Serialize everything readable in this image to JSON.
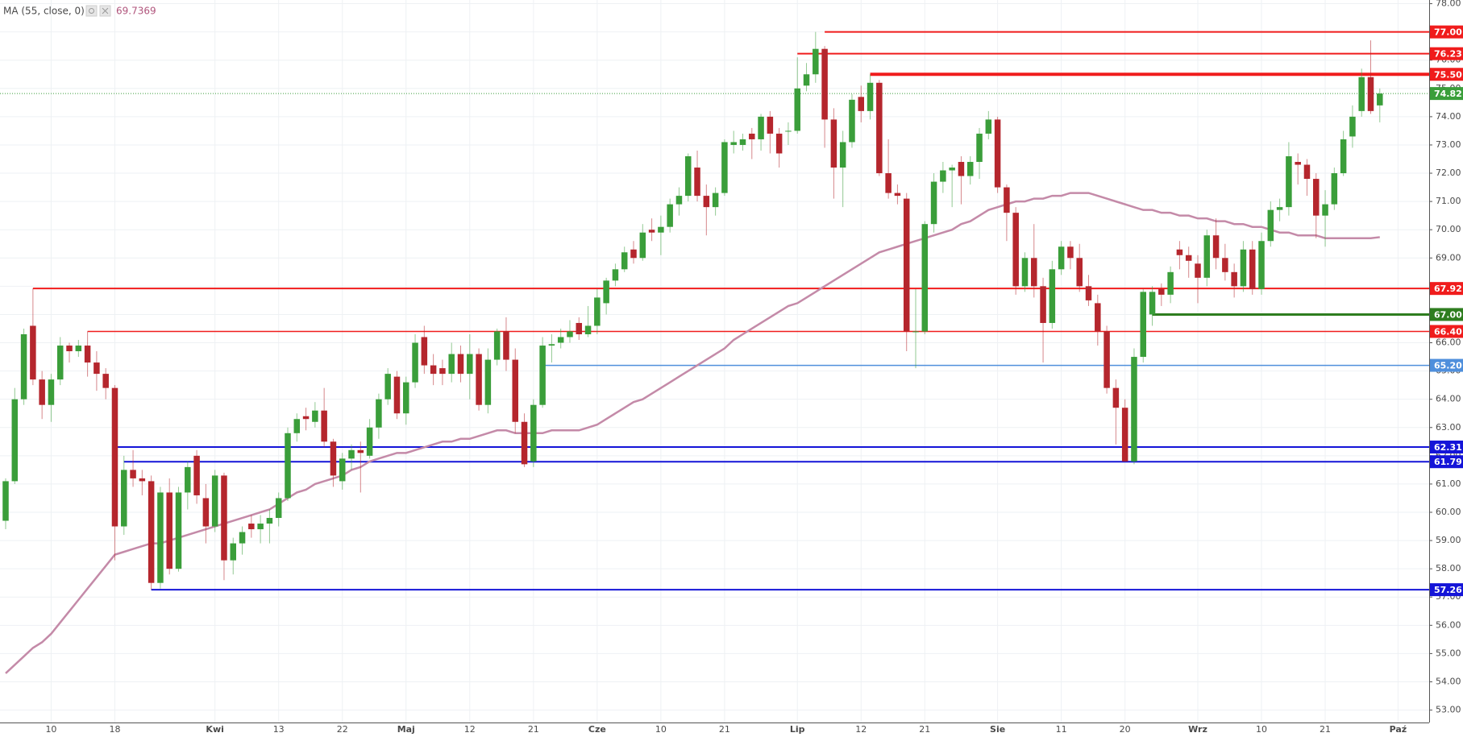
{
  "chart_data": {
    "type": "candlestick",
    "categories": [
      null,
      null,
      null,
      null,
      null,
      "10",
      null,
      null,
      null,
      null,
      null,
      null,
      "18",
      null,
      null,
      null,
      null,
      null,
      null,
      null,
      null,
      null,
      null,
      "Kwi",
      null,
      null,
      null,
      null,
      null,
      null,
      "13",
      null,
      null,
      null,
      null,
      null,
      null,
      "22",
      null,
      null,
      null,
      null,
      null,
      null,
      "Maj",
      null,
      null,
      null,
      null,
      null,
      null,
      "12",
      null,
      null,
      null,
      null,
      null,
      null,
      "21",
      null,
      null,
      null,
      null,
      null,
      null,
      "Cze",
      null,
      null,
      null,
      null,
      null,
      null,
      "10",
      null,
      null,
      null,
      null,
      null,
      null,
      "21",
      null,
      null,
      null,
      null,
      null,
      null,
      null,
      "Lip",
      null,
      null,
      null,
      null,
      null,
      null,
      "12",
      null,
      null,
      null,
      null,
      null,
      null,
      "21",
      null,
      null,
      null,
      null,
      null,
      null,
      null,
      "Sie",
      null,
      null,
      null,
      null,
      null,
      null,
      "11",
      null,
      null,
      null,
      null,
      null,
      null,
      "20",
      null,
      null,
      null,
      null,
      null,
      null,
      null,
      "Wrz",
      null,
      null,
      null,
      null,
      null,
      null,
      "10",
      null,
      null,
      null,
      null,
      null,
      null,
      "21",
      null,
      null,
      null,
      null,
      null,
      null,
      null,
      "Paź"
    ],
    "ohlc": [
      [
        59.7,
        61.2,
        59.4,
        61.1
      ],
      [
        61.1,
        64.4,
        61.0,
        64.0
      ],
      [
        64.0,
        66.5,
        63.8,
        66.3
      ],
      [
        66.6,
        67.92,
        64.5,
        64.7
      ],
      [
        64.7,
        65.0,
        63.3,
        63.8
      ],
      [
        63.8,
        64.9,
        63.2,
        64.7
      ],
      [
        64.7,
        66.2,
        64.5,
        65.9
      ],
      [
        65.9,
        66.0,
        65.3,
        65.7
      ],
      [
        65.7,
        66.1,
        65.5,
        65.9
      ],
      [
        65.9,
        66.4,
        64.8,
        65.3
      ],
      [
        65.3,
        65.7,
        64.3,
        64.9
      ],
      [
        64.9,
        65.1,
        64.0,
        64.4
      ],
      [
        64.4,
        64.5,
        58.3,
        59.5
      ],
      [
        59.5,
        62.0,
        59.2,
        61.5
      ],
      [
        61.5,
        62.2,
        60.9,
        61.2
      ],
      [
        61.2,
        61.5,
        60.6,
        61.1
      ],
      [
        61.1,
        61.3,
        57.26,
        57.5
      ],
      [
        57.5,
        60.9,
        57.3,
        60.7
      ],
      [
        60.7,
        61.2,
        57.8,
        58.0
      ],
      [
        58.0,
        60.9,
        57.9,
        60.7
      ],
      [
        60.7,
        61.8,
        60.1,
        61.6
      ],
      [
        62.0,
        62.2,
        60.3,
        60.6
      ],
      [
        60.5,
        61.0,
        58.9,
        59.5
      ],
      [
        59.5,
        61.5,
        59.3,
        61.3
      ],
      [
        61.3,
        61.4,
        57.6,
        58.3
      ],
      [
        58.3,
        59.1,
        57.8,
        58.9
      ],
      [
        58.9,
        59.5,
        58.5,
        59.3
      ],
      [
        59.6,
        59.9,
        59.1,
        59.4
      ],
      [
        59.4,
        59.9,
        58.9,
        59.6
      ],
      [
        59.6,
        60.1,
        58.9,
        59.8
      ],
      [
        59.8,
        60.7,
        59.5,
        60.5
      ],
      [
        60.5,
        63.0,
        60.4,
        62.8
      ],
      [
        62.8,
        63.5,
        62.5,
        63.3
      ],
      [
        63.4,
        63.7,
        62.9,
        63.3
      ],
      [
        63.2,
        63.9,
        63.0,
        63.6
      ],
      [
        63.6,
        64.4,
        62.3,
        62.5
      ],
      [
        62.5,
        62.6,
        60.9,
        61.3
      ],
      [
        61.1,
        62.1,
        60.8,
        61.9
      ],
      [
        61.9,
        62.4,
        61.5,
        62.2
      ],
      [
        62.2,
        62.5,
        60.7,
        62.1
      ],
      [
        62.0,
        63.3,
        61.9,
        63.0
      ],
      [
        63.0,
        64.2,
        62.6,
        64.0
      ],
      [
        64.0,
        65.1,
        63.8,
        64.9
      ],
      [
        64.8,
        65.0,
        63.3,
        63.5
      ],
      [
        63.5,
        64.8,
        63.1,
        64.6
      ],
      [
        64.6,
        66.3,
        64.4,
        66.0
      ],
      [
        66.2,
        66.6,
        64.9,
        65.2
      ],
      [
        65.2,
        65.6,
        64.5,
        64.9
      ],
      [
        65.1,
        65.4,
        64.5,
        64.9
      ],
      [
        64.9,
        66.0,
        64.6,
        65.6
      ],
      [
        65.6,
        65.9,
        64.6,
        64.9
      ],
      [
        64.9,
        66.3,
        64.0,
        65.6
      ],
      [
        65.6,
        65.8,
        63.6,
        63.8
      ],
      [
        63.8,
        65.8,
        63.5,
        65.4
      ],
      [
        65.4,
        66.5,
        65.2,
        66.4
      ],
      [
        66.4,
        66.9,
        65.0,
        65.4
      ],
      [
        65.4,
        65.8,
        62.8,
        63.2
      ],
      [
        63.2,
        63.5,
        61.6,
        61.7
      ],
      [
        61.8,
        64.0,
        61.6,
        63.8
      ],
      [
        63.8,
        66.2,
        63.7,
        65.9
      ],
      [
        65.9,
        66.3,
        65.3,
        65.95
      ],
      [
        66.0,
        66.5,
        65.8,
        66.2
      ],
      [
        66.2,
        66.8,
        66.0,
        66.4
      ],
      [
        66.7,
        66.9,
        66.1,
        66.3
      ],
      [
        66.3,
        67.3,
        66.2,
        66.6
      ],
      [
        66.6,
        67.9,
        66.3,
        67.6
      ],
      [
        67.4,
        68.3,
        67.0,
        68.2
      ],
      [
        68.2,
        68.8,
        68.0,
        68.6
      ],
      [
        68.6,
        69.4,
        68.5,
        69.2
      ],
      [
        69.3,
        69.6,
        68.8,
        69.0
      ],
      [
        69.0,
        70.2,
        68.9,
        69.9
      ],
      [
        70.0,
        70.4,
        69.6,
        69.9
      ],
      [
        69.9,
        70.5,
        69.1,
        70.1
      ],
      [
        70.1,
        71.1,
        69.9,
        70.9
      ],
      [
        70.9,
        71.5,
        70.5,
        71.2
      ],
      [
        71.2,
        72.7,
        71.0,
        72.6
      ],
      [
        72.2,
        72.8,
        71.0,
        71.2
      ],
      [
        71.2,
        71.6,
        69.8,
        70.8
      ],
      [
        70.8,
        71.5,
        70.5,
        71.3
      ],
      [
        71.3,
        73.2,
        71.2,
        73.1
      ],
      [
        73.0,
        73.5,
        72.7,
        73.1
      ],
      [
        73.0,
        73.4,
        72.8,
        73.2
      ],
      [
        73.4,
        73.6,
        72.5,
        73.2
      ],
      [
        73.2,
        74.1,
        72.8,
        74.0
      ],
      [
        74.0,
        74.2,
        72.7,
        73.4
      ],
      [
        73.4,
        73.6,
        72.2,
        72.7
      ],
      [
        73.5,
        73.8,
        73.0,
        73.5
      ],
      [
        73.5,
        76.1,
        73.4,
        75.0
      ],
      [
        75.1,
        75.9,
        74.9,
        75.5
      ],
      [
        75.5,
        77.0,
        75.2,
        76.4
      ],
      [
        76.4,
        76.5,
        72.9,
        73.9
      ],
      [
        73.9,
        74.3,
        71.1,
        72.2
      ],
      [
        72.2,
        73.5,
        70.8,
        73.1
      ],
      [
        73.1,
        74.8,
        72.9,
        74.6
      ],
      [
        74.7,
        75.1,
        73.8,
        74.2
      ],
      [
        74.2,
        75.5,
        73.9,
        75.2
      ],
      [
        75.2,
        75.3,
        71.9,
        72.0
      ],
      [
        72.0,
        73.2,
        71.1,
        71.3
      ],
      [
        71.3,
        71.6,
        70.9,
        71.2
      ],
      [
        71.1,
        71.3,
        65.7,
        66.4
      ],
      [
        66.4,
        67.9,
        65.1,
        66.4
      ],
      [
        66.4,
        70.3,
        66.3,
        70.2
      ],
      [
        70.2,
        72.0,
        69.9,
        71.7
      ],
      [
        71.7,
        72.4,
        71.3,
        72.1
      ],
      [
        72.1,
        72.3,
        70.8,
        72.2
      ],
      [
        72.4,
        72.6,
        70.9,
        71.9
      ],
      [
        71.9,
        72.6,
        71.6,
        72.4
      ],
      [
        72.4,
        73.6,
        71.8,
        73.4
      ],
      [
        73.4,
        74.2,
        73.2,
        73.9
      ],
      [
        73.9,
        74.0,
        71.3,
        71.5
      ],
      [
        71.5,
        71.6,
        69.6,
        70.6
      ],
      [
        70.6,
        70.8,
        67.7,
        68.0
      ],
      [
        68.0,
        69.2,
        67.8,
        69.0
      ],
      [
        69.0,
        70.2,
        67.6,
        68.0
      ],
      [
        68.0,
        68.3,
        65.3,
        66.7
      ],
      [
        66.7,
        68.9,
        66.5,
        68.6
      ],
      [
        68.6,
        69.6,
        68.4,
        69.4
      ],
      [
        69.4,
        69.6,
        68.6,
        69.0
      ],
      [
        69.0,
        69.5,
        67.8,
        68.0
      ],
      [
        68.0,
        68.4,
        67.3,
        67.5
      ],
      [
        67.4,
        67.7,
        65.9,
        66.4
      ],
      [
        66.4,
        66.6,
        64.2,
        64.4
      ],
      [
        64.4,
        64.7,
        62.4,
        63.7
      ],
      [
        63.7,
        64.0,
        61.79,
        61.8
      ],
      [
        61.8,
        65.8,
        61.7,
        65.5
      ],
      [
        65.5,
        67.9,
        65.3,
        67.8
      ],
      [
        67.0,
        68.0,
        66.6,
        67.8
      ],
      [
        67.9,
        68.1,
        67.3,
        67.7
      ],
      [
        67.7,
        68.7,
        67.4,
        68.5
      ],
      [
        69.3,
        69.6,
        68.6,
        69.1
      ],
      [
        69.1,
        69.4,
        68.3,
        68.9
      ],
      [
        68.8,
        69.1,
        67.4,
        68.3
      ],
      [
        68.3,
        70.0,
        68.0,
        69.8
      ],
      [
        69.8,
        70.4,
        68.6,
        69.0
      ],
      [
        69.0,
        69.5,
        68.2,
        68.5
      ],
      [
        68.5,
        68.8,
        67.6,
        68.0
      ],
      [
        68.0,
        69.6,
        67.8,
        69.3
      ],
      [
        69.3,
        69.6,
        67.7,
        67.9
      ],
      [
        67.9,
        69.9,
        67.7,
        69.6
      ],
      [
        69.6,
        71.0,
        69.4,
        70.7
      ],
      [
        70.7,
        71.1,
        70.3,
        70.8
      ],
      [
        70.8,
        73.1,
        70.5,
        72.6
      ],
      [
        72.4,
        72.7,
        71.6,
        72.3
      ],
      [
        72.3,
        72.5,
        71.2,
        71.8
      ],
      [
        71.8,
        72.0,
        69.7,
        70.5
      ],
      [
        70.5,
        71.4,
        69.4,
        70.9
      ],
      [
        70.9,
        72.2,
        70.7,
        72.0
      ],
      [
        72.0,
        73.5,
        71.9,
        73.2
      ],
      [
        73.3,
        74.4,
        72.9,
        74.0
      ],
      [
        74.2,
        75.7,
        74.0,
        75.4
      ],
      [
        75.4,
        76.7,
        74.1,
        74.2
      ],
      [
        74.4,
        75.0,
        73.8,
        74.82
      ],
      null,
      null
    ],
    "up_color": "#3a9e3a",
    "down_color": "#b5262d",
    "series": [
      {
        "name": "MA (55, close, 0)",
        "color": "#c48aa8",
        "values": [
          54.3,
          54.6,
          54.9,
          55.2,
          55.4,
          55.7,
          56.1,
          56.5,
          56.9,
          57.3,
          57.7,
          58.1,
          58.5,
          58.6,
          58.7,
          58.8,
          58.9,
          58.9,
          59.0,
          59.1,
          59.2,
          59.3,
          59.4,
          59.5,
          59.6,
          59.7,
          59.8,
          59.9,
          60.0,
          60.1,
          60.3,
          60.5,
          60.7,
          60.8,
          61.0,
          61.1,
          61.2,
          61.3,
          61.5,
          61.6,
          61.8,
          61.9,
          62.0,
          62.1,
          62.1,
          62.2,
          62.3,
          62.4,
          62.5,
          62.5,
          62.6,
          62.6,
          62.7,
          62.8,
          62.9,
          62.9,
          62.8,
          62.8,
          62.8,
          62.8,
          62.9,
          62.9,
          62.9,
          62.9,
          63.0,
          63.1,
          63.3,
          63.5,
          63.7,
          63.9,
          64.0,
          64.2,
          64.4,
          64.6,
          64.8,
          65.0,
          65.2,
          65.4,
          65.6,
          65.8,
          66.1,
          66.3,
          66.5,
          66.7,
          66.9,
          67.1,
          67.3,
          67.4,
          67.6,
          67.8,
          68.0,
          68.2,
          68.4,
          68.6,
          68.8,
          69.0,
          69.2,
          69.3,
          69.4,
          69.5,
          69.6,
          69.7,
          69.8,
          69.9,
          70.0,
          70.2,
          70.3,
          70.5,
          70.7,
          70.8,
          70.9,
          71.0,
          71.0,
          71.1,
          71.1,
          71.2,
          71.2,
          71.3,
          71.3,
          71.3,
          71.2,
          71.1,
          71.0,
          70.9,
          70.8,
          70.7,
          70.7,
          70.6,
          70.6,
          70.5,
          70.5,
          70.4,
          70.4,
          70.3,
          70.3,
          70.2,
          70.2,
          70.1,
          70.1,
          70.0,
          69.9,
          69.9,
          69.8,
          69.8,
          69.8,
          69.7,
          69.7,
          69.7,
          69.7,
          69.7,
          69.7,
          69.7369,
          null,
          null
        ]
      }
    ],
    "levels": [
      {
        "value": 77.0,
        "label": "77.00",
        "color": "#f01c1c"
      },
      {
        "value": 76.23,
        "label": "76.23",
        "color": "#f01c1c"
      },
      {
        "value": 75.5,
        "label": "75.50",
        "color": "#f01c1c"
      },
      {
        "value": 67.92,
        "label": "67.92",
        "color": "#f01c1c"
      },
      {
        "value": 67.0,
        "label": "67.00",
        "color": "#2e7d1f"
      },
      {
        "value": 66.4,
        "label": "66.40",
        "color": "#f01c1c"
      },
      {
        "value": 65.2,
        "label": "65.20",
        "color": "#4f8fdc"
      },
      {
        "value": 62.31,
        "label": "62.31",
        "color": "#1414d8"
      },
      {
        "value": 61.79,
        "label": "61.79",
        "color": "#1414d8"
      },
      {
        "value": 57.26,
        "label": "57.26",
        "color": "#1414d8"
      }
    ],
    "last_price": {
      "value": 74.82,
      "label": "74.82",
      "color": "#3a9e3a"
    },
    "ylim": [
      52.56,
      78.13
    ],
    "yticks": [
      {
        "value": 53,
        "label": "53.00"
      },
      {
        "value": 54,
        "label": "54.00"
      },
      {
        "value": 55,
        "label": "55.00"
      },
      {
        "value": 56,
        "label": "56.00"
      },
      {
        "value": 57,
        "label": "57.00"
      },
      {
        "value": 58,
        "label": "58.00"
      },
      {
        "value": 59,
        "label": "59.00"
      },
      {
        "value": 60,
        "label": "60.00"
      },
      {
        "value": 61,
        "label": "61.00"
      },
      {
        "value": 62,
        "label": "62.00"
      },
      {
        "value": 63,
        "label": "63.00"
      },
      {
        "value": 64,
        "label": "64.00"
      },
      {
        "value": 65,
        "label": "65.00"
      },
      {
        "value": 66,
        "label": "66.00"
      },
      {
        "value": 67,
        "label": "67.00"
      },
      {
        "value": 68,
        "label": "68.00"
      },
      {
        "value": 69,
        "label": "69.00"
      },
      {
        "value": 70,
        "label": "70.00"
      },
      {
        "value": 71,
        "label": "71.00"
      },
      {
        "value": 72,
        "label": "72.00"
      },
      {
        "value": 73,
        "label": "73.00"
      },
      {
        "value": 74,
        "label": "74.00"
      },
      {
        "value": 75,
        "label": "75.00"
      },
      {
        "value": 76,
        "label": "76.00"
      },
      {
        "value": 77,
        "label": "77.00"
      },
      {
        "value": 78,
        "label": "78.00"
      }
    ],
    "grid": true
  }
}
